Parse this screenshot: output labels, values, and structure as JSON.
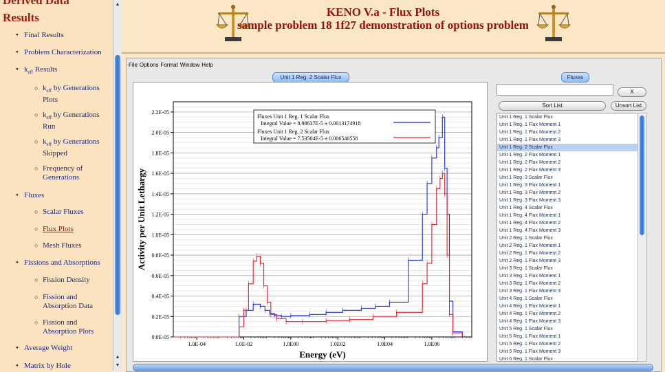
{
  "nav": {
    "partial_title": "Derived Data",
    "section_title": "Results",
    "items": [
      {
        "label": "Final Results",
        "level": 1
      },
      {
        "label": "Problem Characterization",
        "level": 1
      },
      {
        "label": "k",
        "sub": "eff",
        "suffix": " Results",
        "level": 1
      },
      {
        "label": "k",
        "sub": "eff",
        "suffix": " by Generations",
        "line2": "Plots",
        "level": 2
      },
      {
        "label": "k",
        "sub": "eff",
        "suffix": " by Generations",
        "line2": "Run",
        "level": 2
      },
      {
        "label": "k",
        "sub": "eff",
        "suffix": " by Generations",
        "line2": "Skipped",
        "level": 2
      },
      {
        "label": "Frequency of",
        "line2": "Generations",
        "level": 2
      },
      {
        "label": "Fluxes",
        "level": 1
      },
      {
        "label": "Scalar Fluxes",
        "level": 2
      },
      {
        "label": "Flux Plots",
        "level": 2,
        "active": true
      },
      {
        "label": "Mesh Fluxes",
        "level": 2
      },
      {
        "label": "Fissions and Absorptions",
        "level": 1
      },
      {
        "label": "Fission Density",
        "level": 2
      },
      {
        "label": "Fission and",
        "line2": "Absorption Data",
        "level": 2
      },
      {
        "label": "Fission and",
        "line2": "Absorption Plots",
        "level": 2
      },
      {
        "label": "Average Weight",
        "level": 1
      },
      {
        "label": "Matrix by Hole",
        "level": 1
      }
    ]
  },
  "header": {
    "title": "KENO V.a - Flux Plots",
    "subtitle": "sample problem 18 1f27 demonstration of options problem"
  },
  "applet": {
    "menu": [
      "File",
      "Options",
      "Format",
      "Window",
      "Help"
    ],
    "plot_panel_title": "Unit 1 Reg. 2 Scalar Flux",
    "flux_panel_title": "Fluxes",
    "search_value": "",
    "clear_label": "X",
    "sort_label": "Sort List",
    "unsort_label": "Unsort List",
    "selected_index": 4,
    "flux_list": [
      "Unit 1 Reg. 1 Scalar Flux",
      "Unit 1 Reg. 1 Flux Moment 1",
      "Unit 1 Reg. 1 Flux Moment 2",
      "Unit 1 Reg. 1 Flux Moment 3",
      "Unit 1 Reg. 2 Scalar Flux",
      "Unit 1 Reg. 2 Flux Moment 1",
      "Unit 1 Reg. 2 Flux Moment 2",
      "Unit 1 Reg. 2 Flux Moment 3",
      "Unit 1 Reg. 3 Scalar Flux",
      "Unit 1 Reg. 3 Flux Moment 1",
      "Unit 1 Reg. 3 Flux Moment 2",
      "Unit 1 Reg. 3 Flux Moment 3",
      "Unit 1 Reg. 4 Scalar Flux",
      "Unit 1 Reg. 4 Flux Moment 1",
      "Unit 1 Reg. 4 Flux Moment 2",
      "Unit 1 Reg. 4 Flux Moment 3",
      "Unit 2 Reg. 1 Scalar Flux",
      "Unit 2 Reg. 1 Flux Moment 1",
      "Unit 2 Reg. 1 Flux Moment 2",
      "Unit 2 Reg. 1 Flux Moment 3",
      "Unit 3 Reg. 1 Scalar Flux",
      "Unit 3 Reg. 1 Flux Moment 1",
      "Unit 3 Reg. 1 Flux Moment 2",
      "Unit 3 Reg. 1 Flux Moment 3",
      "Unit 4 Reg. 1 Scalar Flux",
      "Unit 4 Reg. 1 Flux Moment 1",
      "Unit 4 Reg. 1 Flux Moment 2",
      "Unit 4 Reg. 1 Flux Moment 3",
      "Unit 5 Reg. 1 Scalar Flux",
      "Unit 5 Reg. 1 Flux Moment 1",
      "Unit 5 Reg. 1 Flux Moment 2",
      "Unit 5 Reg. 1 Flux Moment 3",
      "Unit 6 Reg. 1 Scalar Flux"
    ]
  },
  "colors": {
    "series1": "#1f2fe0",
    "series2": "#e8202a",
    "title": "#9a1008",
    "link": "#1e2a7d"
  },
  "chart_data": {
    "type": "line",
    "step": true,
    "xscale": "log",
    "xlabel": "Energy (eV)",
    "ylabel": "Activity per Unit Lethargy",
    "xlim_log10": [
      -5,
      7.7
    ],
    "ylim": [
      0,
      2.3e-05
    ],
    "xtick_labels": [
      "1.0E-04",
      "1.0E-02",
      "1.0E00",
      "1.0E02",
      "1.0E04",
      "1.0E06"
    ],
    "xtick_values_log10": [
      -4,
      -2,
      0,
      2,
      4,
      6
    ],
    "ytick_labels": [
      "0.0E-05",
      "0.2E-05",
      "0.4E-05",
      "0.6E-05",
      "0.8E-05",
      "1.0E-05",
      "1.2E-05",
      "1.4E-05",
      "1.6E-05",
      "1.8E-05",
      "2.0E-05",
      "2.2E-05"
    ],
    "ytick_values": [
      0,
      2e-06,
      4e-06,
      6e-06,
      8e-06,
      1e-05,
      1.2e-05,
      1.4e-05,
      1.6e-05,
      1.8e-05,
      2e-05,
      2.2e-05
    ],
    "grid": true,
    "legend_position": "top-center",
    "series": [
      {
        "name": "Fluxes Unit 1 Reg. 1 Scalar Flux",
        "integral": "Integral Value = 8.98637E-5 ± 0.0013174918",
        "color": "#1f2fe0",
        "x_log10": [
          -5,
          -2.2,
          -1.9,
          -1.6,
          -1.3,
          -1.1,
          -0.9,
          -0.7,
          -0.4,
          0,
          0.8,
          1.5,
          2.2,
          3,
          3.6,
          4.2,
          5.0,
          5.6,
          5.8,
          6.0,
          6.2,
          6.3,
          6.45,
          6.55,
          6.65,
          6.75,
          6.9,
          7.3
        ],
        "y": [
          0.0,
          2e-06,
          2.6e-06,
          3.2e-06,
          3e-06,
          2.6e-06,
          2.3e-06,
          2.1e-06,
          2e-06,
          2.1e-06,
          2.2e-06,
          2.4e-06,
          2.6e-06,
          2.8e-06,
          3e-06,
          3.4e-06,
          7.5e-06,
          1.2e-05,
          1.5e-05,
          1.75e-05,
          1.85e-05,
          1.95e-05,
          2.15e-05,
          1.65e-05,
          1.2e-05,
          3.5e-06,
          5e-07,
          0.0
        ]
      },
      {
        "name": "Fluxes Unit 1 Reg. 2 Scalar Flux",
        "integral": "Integral Value = 7.53504E-5 ± 0.006540558",
        "color": "#e8202a",
        "x_log10": [
          -5,
          -2.2,
          -2.0,
          -1.8,
          -1.6,
          -1.45,
          -1.3,
          -1.15,
          -1.0,
          -0.85,
          -0.6,
          -0.2,
          0.5,
          1.5,
          2.5,
          3.5,
          4.5,
          5.6,
          5.8,
          6.0,
          6.2,
          6.35,
          6.45,
          6.55,
          6.65,
          6.75,
          6.9,
          7.3
        ],
        "y": [
          0.0,
          1e-06,
          2.6e-06,
          5.2e-06,
          7.4e-06,
          7.9e-06,
          7.2e-06,
          5e-06,
          3.4e-06,
          2.2e-06,
          1.8e-06,
          1.5e-06,
          1.5e-06,
          1.6e-06,
          1.7e-06,
          2e-06,
          2.4e-06,
          5.2e-06,
          7.2e-06,
          1.1e-05,
          1.45e-05,
          1.55e-05,
          1.6e-05,
          1.4e-05,
          8e-06,
          2.2e-06,
          4e-07,
          0.0
        ]
      }
    ]
  }
}
